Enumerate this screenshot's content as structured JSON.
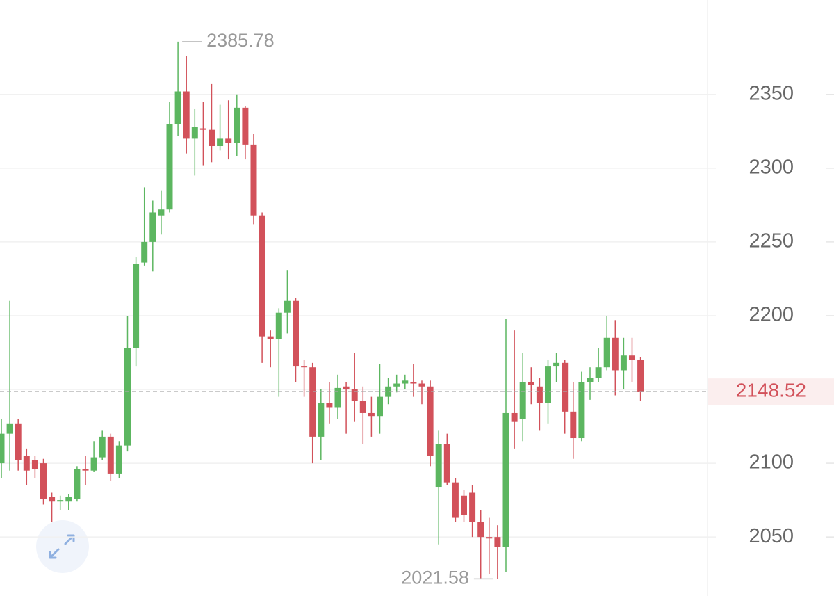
{
  "chart_data": {
    "type": "candlestick",
    "up_color": "#5cb660",
    "down_color": "#d2515a",
    "open": [
      2100,
      2120,
      2127,
      2105,
      2102,
      2100,
      2077,
      2074,
      2074,
      2076,
      2096,
      2095,
      2104,
      2118,
      2093,
      2112,
      2178,
      2236,
      2250,
      2268,
      2272,
      2330,
      2352,
      2320,
      2327,
      2326,
      2315,
      2320,
      2317,
      2341,
      2316,
      2268,
      2186,
      2184,
      2202,
      2210,
      2166,
      2165,
      2118,
      2141,
      2138,
      2152,
      2150,
      2142,
      2134,
      2132,
      2145,
      2152,
      2154,
      2155,
      2154,
      2152,
      2084,
      2113,
      2087,
      2078,
      2080,
      2060,
      2050,
      2050,
      2043,
      2134,
      2130,
      2155,
      2152,
      2141,
      2166,
      2168,
      2135,
      2117,
      2155,
      2158,
      2165,
      2185,
      2163,
      2173,
      2170
    ],
    "high": [
      2130,
      2210,
      2130,
      2110,
      2105,
      2103,
      2080,
      2078,
      2079,
      2098,
      2105,
      2115,
      2122,
      2120,
      2115,
      2200,
      2240,
      2287,
      2278,
      2285,
      2345,
      2385.78,
      2376,
      2340,
      2345,
      2357,
      2343,
      2346,
      2350,
      2342,
      2323,
      2270,
      2190,
      2205,
      2231,
      2212,
      2170,
      2168,
      2150,
      2155,
      2160,
      2155,
      2175,
      2152,
      2145,
      2167,
      2158,
      2160,
      2160,
      2167,
      2156,
      2156,
      2122,
      2120,
      2090,
      2082,
      2085,
      2068,
      2063,
      2058,
      2198,
      2190,
      2175,
      2165,
      2158,
      2170,
      2175,
      2170,
      2155,
      2162,
      2165,
      2178,
      2200,
      2197,
      2185,
      2185,
      2172
    ],
    "low": [
      2090,
      2095,
      2095,
      2085,
      2090,
      2072,
      2060,
      2068,
      2068,
      2074,
      2085,
      2094,
      2102,
      2088,
      2090,
      2108,
      2166,
      2234,
      2230,
      2255,
      2270,
      2322,
      2310,
      2295,
      2302,
      2304,
      2312,
      2306,
      2308,
      2306,
      2262,
      2168,
      2165,
      2145,
      2188,
      2155,
      2145,
      2100,
      2102,
      2127,
      2130,
      2120,
      2128,
      2113,
      2118,
      2120,
      2140,
      2148,
      2150,
      2145,
      2140,
      2098,
      2045,
      2085,
      2060,
      2060,
      2050,
      2022,
      2025,
      2021.58,
      2026,
      2110,
      2115,
      2140,
      2122,
      2127,
      2155,
      2120,
      2103,
      2115,
      2143,
      2155,
      2163,
      2146,
      2150,
      2155,
      2142
    ],
    "close": [
      2120,
      2127,
      2102,
      2095,
      2096,
      2076,
      2074,
      2075,
      2077,
      2096,
      2095,
      2104,
      2118,
      2093,
      2112,
      2178,
      2235,
      2250,
      2270,
      2272,
      2330,
      2352,
      2320,
      2328,
      2326,
      2315,
      2320,
      2317,
      2341,
      2316,
      2268,
      2186,
      2184,
      2202,
      2210,
      2166,
      2165,
      2118,
      2141,
      2138,
      2151,
      2150,
      2142,
      2134,
      2132,
      2145,
      2152,
      2154,
      2156,
      2154,
      2152,
      2105,
      2113,
      2087,
      2063,
      2065,
      2060,
      2050,
      2049,
      2043,
      2134,
      2128,
      2155,
      2153,
      2141,
      2166,
      2168,
      2135,
      2117,
      2155,
      2158,
      2165,
      2185,
      2163,
      2173,
      2170,
      2148.52
    ],
    "ylim": [
      2010,
      2414
    ],
    "yticks": [
      2050,
      2100,
      2150,
      2200,
      2250,
      2300,
      2350
    ],
    "max_label": 2385.78,
    "min_label": 2021.58,
    "last_price": 2148.52
  }
}
